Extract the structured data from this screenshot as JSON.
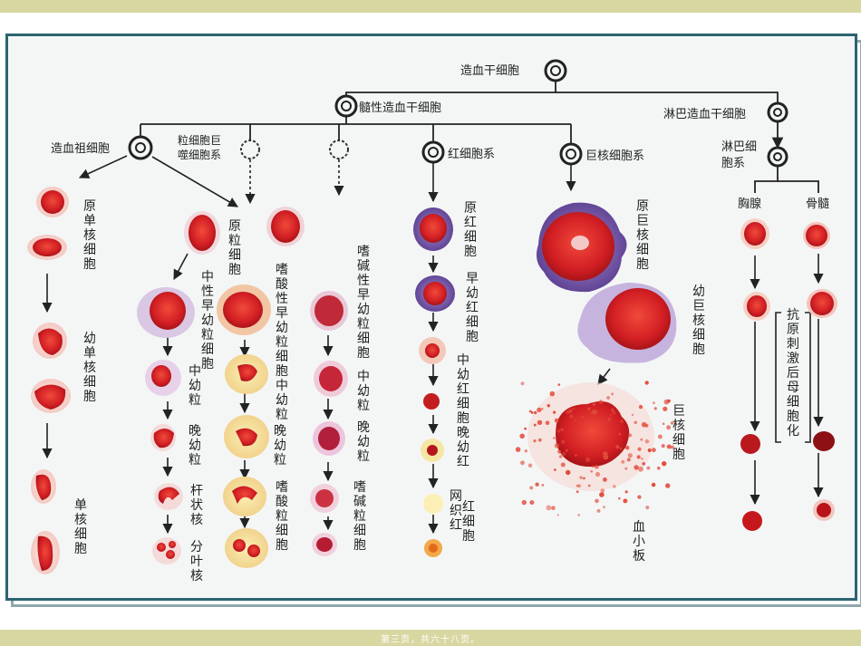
{
  "slide": {
    "page_number": "第三页，共六十八页。"
  },
  "nodes": {
    "hsc": "造血干细胞",
    "myeloid": "髓性造血干细胞",
    "lymphoid": "淋巴造血干细胞",
    "mono_progenitor": "造血祖细胞",
    "gran_mega_1": "粒细胞巨",
    "gran_mega_2": "噬细胞系",
    "rbc_series": "红细胞系",
    "mega_series": "巨核细胞系",
    "lymph_series_1": "淋巴细",
    "lymph_series_2": "胞系",
    "thymus": "胸腺",
    "marrow": "骨髓"
  },
  "labels": {
    "monoblast": "原单核细胞",
    "promonocyte": "幼单核细胞",
    "monocyte": "单核细胞",
    "myeloblast": "原粒细胞",
    "neutro_promyelo": "中性早幼粒细胞",
    "neutro_myelo": "中幼粒",
    "neutro_meta": "晚幼粒",
    "band": "杆状核",
    "segmented": "分叶核",
    "eos_promyelo": "嗜酸性早幼粒细胞中幼粒",
    "eos_meta": "晚幼粒",
    "eosinophil": "嗜酸粒细胞",
    "baso_promyelo": "嗜碱性早幼粒细胞",
    "baso_myelo": "中幼粒",
    "baso_meta": "晚幼粒",
    "basophil": "嗜碱粒细胞",
    "proerythroblast": "原红细胞",
    "early_erythro": "早幼红细胞",
    "mid_late_erythro": "中幼红细胞晚幼红",
    "reticulocyte": "网织红",
    "erythrocyte": "红细胞",
    "megakaryoblast": "原巨核细胞",
    "promegakaryocyte": "幼巨核细胞",
    "megakaryocyte": "巨核细胞",
    "platelet": "血小板",
    "antigen_stim": "抗原刺激后母细胞化"
  },
  "colors": {
    "frame": "#2b6470",
    "band": "#d8d7a2",
    "cell_red": "#d8262a",
    "cell_purple": "#7c5ca8",
    "line": "#222222"
  }
}
